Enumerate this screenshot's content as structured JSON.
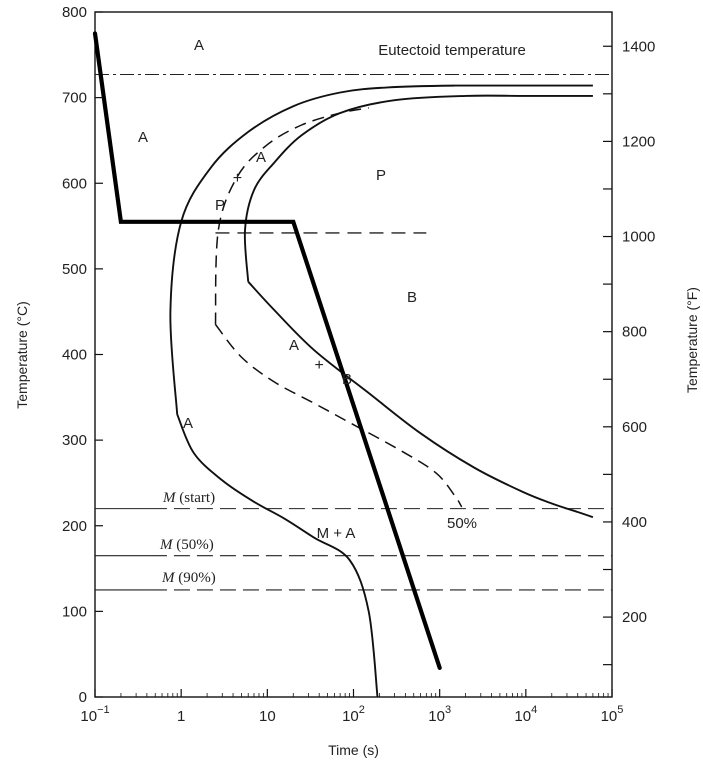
{
  "chart_data": {
    "type": "line",
    "title": "",
    "xlabel": "Time (s)",
    "ylabel": "Temperature (°C)",
    "y2label": "Temperature (°F)",
    "x_scale": "log",
    "xlim": [
      0.1,
      100000
    ],
    "ylim": [
      0,
      800
    ],
    "y2lim": [
      32,
      1472
    ],
    "x_ticks": [
      {
        "value": 0.1,
        "base": "10",
        "exp": "−1"
      },
      {
        "value": 1,
        "base": "1",
        "exp": ""
      },
      {
        "value": 10,
        "base": "10",
        "exp": ""
      },
      {
        "value": 100,
        "base": "10",
        "exp": "2"
      },
      {
        "value": 1000,
        "base": "10",
        "exp": "3"
      },
      {
        "value": 10000,
        "base": "10",
        "exp": "4"
      },
      {
        "value": 100000,
        "base": "10",
        "exp": "5"
      }
    ],
    "y_ticks": [
      0,
      100,
      200,
      300,
      400,
      500,
      600,
      700,
      800
    ],
    "y2_ticks": [
      200,
      400,
      600,
      800,
      1000,
      1200,
      1400
    ],
    "annotations": {
      "eutectoid": "Eutectoid temperature",
      "a_top": "A",
      "a_left": "A",
      "a_low": "A",
      "a_mid_upper": "A",
      "a_mid_lower": "A",
      "p_region": "P",
      "p_small": "P",
      "b_region": "B",
      "b_small": "B",
      "ma": "M + A",
      "pct50": "50%",
      "m_symbol": "M",
      "m_start": "(start)",
      "m_50": "(50%)",
      "m_90": "(90%)"
    },
    "series": [
      {
        "role": "start_curve",
        "style": "solid",
        "x": [
          0.9,
          0.75,
          1.0,
          2.2,
          6,
          20,
          70,
          250,
          1500,
          10000,
          60000
        ],
        "y": [
          330,
          450,
          555,
          618,
          660,
          690,
          706,
          712,
          714,
          714,
          714
        ]
      },
      {
        "role": "start_curve_lower",
        "style": "solid",
        "x": [
          0.9,
          1.4,
          3,
          7,
          16,
          35,
          90,
          150,
          190
        ],
        "y": [
          330,
          285,
          253,
          228,
          208,
          186,
          160,
          100,
          0
        ]
      },
      {
        "role": "finish_curve",
        "style": "solid",
        "x": [
          6,
          5.5,
          7,
          12,
          25,
          70,
          300,
          2000,
          10000,
          60000
        ],
        "y": [
          485,
          545,
          592,
          624,
          656,
          682,
          697,
          702,
          702,
          702
        ]
      },
      {
        "role": "finish_curve_lower",
        "style": "solid",
        "x": [
          6,
          12,
          35,
          150,
          600,
          2500,
          9000,
          20000,
          40000,
          60000
        ],
        "y": [
          485,
          452,
          405,
          355,
          308,
          268,
          240,
          226,
          216,
          210
        ]
      },
      {
        "role": "fifty_percent_curve",
        "style": "dashed",
        "x": [
          2.5,
          2.7,
          4.5,
          10,
          25,
          70,
          150
        ],
        "y": [
          435,
          545,
          608,
          645,
          668,
          682,
          688
        ]
      },
      {
        "role": "fifty_percent_curve_lower",
        "style": "dashed",
        "x": [
          2.5,
          5,
          12,
          35,
          100,
          350,
          900,
          1500,
          1800
        ],
        "y": [
          435,
          397,
          368,
          343,
          318,
          288,
          262,
          235,
          222
        ]
      },
      {
        "role": "cooling_path",
        "style": "bold",
        "x": [
          0.1,
          0.2,
          20,
          1000
        ],
        "y": [
          775,
          555,
          555,
          34
        ]
      }
    ],
    "reference_lines": [
      {
        "role": "eutectoid",
        "style": "dashdot",
        "y": 727
      },
      {
        "role": "bainite_top",
        "style": "dashed",
        "y": 542,
        "x_from": 2.5,
        "x_to": 700
      },
      {
        "role": "m_start",
        "style": "solid_then_dashed",
        "y": 220
      },
      {
        "role": "m_50",
        "style": "solid_then_dashed",
        "y": 165
      },
      {
        "role": "m_90",
        "style": "solid_then_dashed",
        "y": 125
      }
    ],
    "markers": [
      {
        "x": 4.5,
        "y": 606,
        "symbol": "+"
      },
      {
        "x": 40,
        "y": 388,
        "symbol": "+"
      }
    ]
  }
}
